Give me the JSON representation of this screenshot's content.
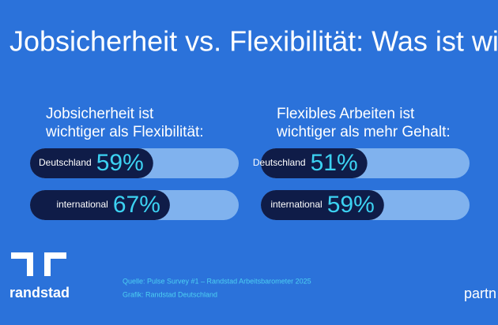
{
  "title": "Jobsicherheit vs. Flexibilität: Was ist wich",
  "chart_data": [
    {
      "type": "bar",
      "title_lines": [
        "Jobsicherheit ist",
        "wichtiger als Flexibilität:"
      ],
      "categories": [
        "Deutschland",
        "international"
      ],
      "values": [
        59,
        67
      ],
      "value_labels": [
        "59%",
        "67%"
      ],
      "xlim": [
        0,
        100
      ],
      "color": "#0f1c48",
      "track_color": "#80b2ee",
      "label_color": "#3cd2f2"
    },
    {
      "type": "bar",
      "title_lines": [
        "Flexibles Arbeiten ist",
        "wichtiger als mehr Gehalt:"
      ],
      "categories": [
        "Deutschland",
        "international"
      ],
      "values": [
        51,
        59
      ],
      "value_labels": [
        "51%",
        "59%"
      ],
      "xlim": [
        0,
        100
      ],
      "color": "#0f1c48",
      "track_color": "#80b2ee",
      "label_color": "#3cd2f2"
    }
  ],
  "source": "Quelle: Pulse Survey #1 – Randstad Arbeitsbarometer 2025",
  "credit": "Grafik: Randstad Deutschland",
  "logo": "randstad",
  "partner": "partn"
}
